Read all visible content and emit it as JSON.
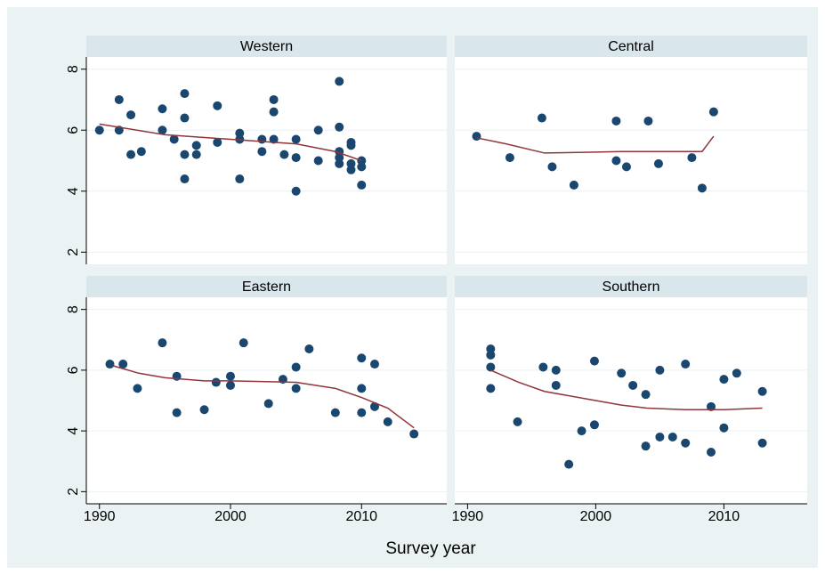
{
  "chart_data": {
    "type": "scatter",
    "xlabel": "Survey year",
    "xlim": [
      1989,
      2016.5
    ],
    "xticks": [
      1990,
      2000,
      2010
    ],
    "ylim": [
      1.6,
      8.4
    ],
    "yticks": [
      2,
      4,
      6,
      8
    ],
    "grid": true,
    "marker_color": "#1a476f",
    "line_color": "#90353b",
    "panels": [
      {
        "title": "Western",
        "x": [
          1990,
          1991.5,
          1991.5,
          1992.4,
          1992.4,
          1993.2,
          1994.8,
          1994.8,
          1995.7,
          1996.5,
          1996.5,
          1996.5,
          1996.5,
          1997.4,
          1997.4,
          1999,
          1999,
          2000.7,
          2000.7,
          2000.7,
          2002.4,
          2002.4,
          2003.3,
          2003.3,
          2003.3,
          2004.1,
          2005,
          2005,
          2005,
          2006.7,
          2006.7,
          2008.3,
          2008.3,
          2008.3,
          2008.3,
          2008.3,
          2009.2,
          2009.2,
          2009.2,
          2009.2,
          2010,
          2010,
          2010
        ],
        "y": [
          6.0,
          7.0,
          6.0,
          6.5,
          5.2,
          5.3,
          6.7,
          6.0,
          5.7,
          7.2,
          6.4,
          5.2,
          4.4,
          5.5,
          5.2,
          6.8,
          5.6,
          5.9,
          5.7,
          4.4,
          5.7,
          5.3,
          7.0,
          6.6,
          5.7,
          5.2,
          5.7,
          5.1,
          4.0,
          6.0,
          5.0,
          7.6,
          6.1,
          5.3,
          5.1,
          4.9,
          5.6,
          5.5,
          4.9,
          4.7,
          5.0,
          4.8,
          4.2
        ],
        "fit_x": [
          1990,
          1995,
          2000,
          2005,
          2008,
          2010
        ],
        "fit_y": [
          6.2,
          5.85,
          5.7,
          5.55,
          5.3,
          5.0
        ]
      },
      {
        "title": "Central",
        "x": [
          1990.7,
          1993.3,
          1995.8,
          1996.6,
          1998.3,
          2001.6,
          2001.6,
          2002.4,
          2004.1,
          2004.9,
          2007.5,
          2008.3,
          2009.2
        ],
        "y": [
          5.8,
          5.1,
          6.4,
          4.8,
          4.2,
          6.3,
          5.0,
          4.8,
          6.3,
          4.9,
          5.1,
          4.1,
          6.6
        ],
        "fit_x": [
          1990.7,
          1993,
          1996,
          2000,
          2002,
          2006,
          2008.3,
          2009.2
        ],
        "fit_y": [
          5.75,
          5.55,
          5.25,
          5.28,
          5.3,
          5.3,
          5.3,
          5.8
        ]
      },
      {
        "title": "Eastern",
        "x": [
          1990.8,
          1991.8,
          1992.9,
          1994.8,
          1995.9,
          1995.9,
          1998,
          1998.9,
          2000,
          2000,
          2001,
          2002.9,
          2004,
          2005,
          2005,
          2006,
          2008,
          2010,
          2010,
          2010,
          2011,
          2011,
          2012,
          2014
        ],
        "y": [
          6.2,
          6.2,
          5.4,
          6.9,
          5.8,
          4.6,
          4.7,
          5.6,
          5.8,
          5.5,
          6.9,
          4.9,
          5.7,
          6.1,
          5.4,
          6.7,
          4.6,
          6.4,
          5.4,
          4.6,
          6.2,
          4.8,
          4.3,
          3.9
        ],
        "fit_x": [
          1991,
          1993,
          1995,
          1998,
          2000,
          2005,
          2008,
          2010,
          2012,
          2014
        ],
        "fit_y": [
          6.15,
          5.9,
          5.75,
          5.65,
          5.65,
          5.6,
          5.4,
          5.1,
          4.75,
          4.1
        ]
      },
      {
        "title": "Southern",
        "x": [
          1991.8,
          1991.8,
          1991.8,
          1991.8,
          1993.9,
          1995.9,
          1996.9,
          1996.9,
          1997.9,
          1998.9,
          1999.9,
          1999.9,
          2002,
          2002.9,
          2003.9,
          2003.9,
          2005,
          2005,
          2006,
          2007,
          2007,
          2009,
          2009,
          2010,
          2010,
          2011,
          2013,
          2013
        ],
        "y": [
          6.7,
          6.5,
          6.1,
          5.4,
          4.3,
          6.1,
          6.0,
          5.5,
          2.9,
          4.0,
          6.3,
          4.2,
          5.9,
          5.5,
          5.2,
          3.5,
          6.0,
          3.8,
          3.8,
          6.2,
          3.6,
          4.8,
          3.3,
          5.7,
          4.1,
          5.9,
          5.3,
          3.6
        ],
        "fit_x": [
          1991.8,
          1994,
          1996,
          2000,
          2002,
          2004,
          2007,
          2010,
          2013
        ],
        "fit_y": [
          6.0,
          5.6,
          5.3,
          5.0,
          4.85,
          4.75,
          4.7,
          4.7,
          4.75
        ]
      }
    ]
  }
}
